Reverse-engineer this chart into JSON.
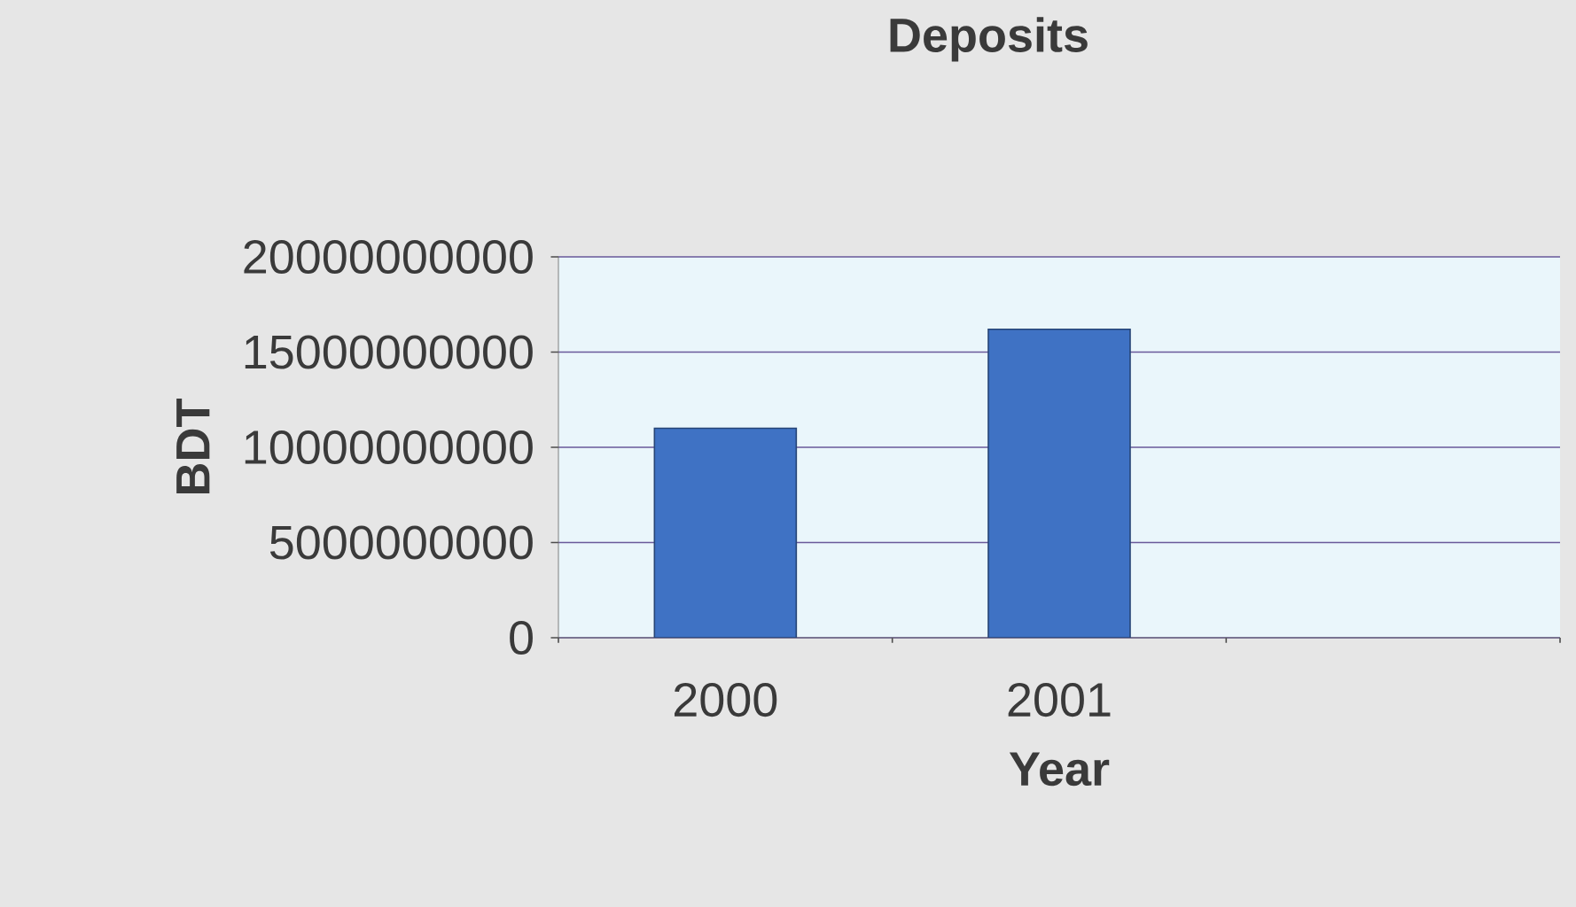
{
  "chart_data": {
    "type": "bar",
    "title": "Deposits",
    "xlabel": "Year",
    "ylabel": "BDT",
    "categories": [
      "2000",
      "2001",
      null
    ],
    "values": [
      11000000000,
      16200000000,
      null
    ],
    "color": "#3f72c4",
    "ylim": [
      0,
      20000000000
    ],
    "yticks": [
      0,
      5000000000,
      10000000000,
      15000000000,
      20000000000
    ],
    "grid": "y"
  }
}
